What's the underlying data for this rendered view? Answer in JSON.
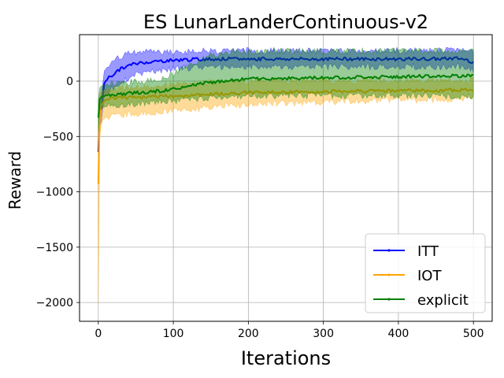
{
  "chart_data": {
    "type": "line",
    "title": "ES LunarLanderContinuous-v2",
    "xlabel": "Iterations",
    "ylabel": "Reward",
    "xlim": [
      -25,
      525
    ],
    "ylim": [
      -2170,
      420
    ],
    "xticks": [
      0,
      100,
      200,
      300,
      400,
      500
    ],
    "xtick_labels": [
      "0",
      "100",
      "200",
      "300",
      "400",
      "500"
    ],
    "yticks": [
      -2000,
      -1500,
      -1000,
      -500,
      0
    ],
    "ytick_labels": [
      "−2000",
      "−1500",
      "−1000",
      "−500",
      "0"
    ],
    "grid": true,
    "legend_position": "lower-right",
    "band_note": "shaded bands show spread across runs",
    "series": [
      {
        "name": "ITT",
        "color": "#0000ff",
        "x": [
          0,
          1,
          2,
          3,
          5,
          8,
          10,
          15,
          20,
          25,
          30,
          40,
          50,
          60,
          70,
          80,
          100,
          120,
          150,
          200,
          250,
          300,
          350,
          400,
          450,
          480,
          490,
          500
        ],
        "y": [
          -640,
          -330,
          -280,
          -300,
          -200,
          -20,
          0,
          40,
          60,
          90,
          110,
          140,
          160,
          170,
          175,
          180,
          190,
          195,
          200,
          200,
          200,
          200,
          200,
          200,
          200,
          205,
          195,
          170
        ],
        "band": [
          [
            -700,
            -560
          ],
          [
            -450,
            -200
          ],
          [
            -400,
            -160
          ],
          [
            -420,
            -180
          ],
          [
            -320,
            -80
          ],
          [
            -140,
            90
          ],
          [
            -120,
            110
          ],
          [
            -80,
            150
          ],
          [
            -60,
            170
          ],
          [
            -30,
            200
          ],
          [
            -10,
            220
          ],
          [
            30,
            250
          ],
          [
            60,
            260
          ],
          [
            80,
            260
          ],
          [
            90,
            260
          ],
          [
            100,
            260
          ],
          [
            110,
            265
          ],
          [
            120,
            270
          ],
          [
            130,
            275
          ],
          [
            130,
            275
          ],
          [
            130,
            275
          ],
          [
            130,
            275
          ],
          [
            130,
            275
          ],
          [
            130,
            275
          ],
          [
            130,
            275
          ],
          [
            135,
            280
          ],
          [
            125,
            270
          ],
          [
            100,
            250
          ]
        ]
      },
      {
        "name": "IOT",
        "color": "#ffa500",
        "x": [
          0,
          1,
          2,
          3,
          5,
          8,
          10,
          15,
          20,
          30,
          40,
          60,
          80,
          100,
          130,
          160,
          200,
          250,
          300,
          350,
          400,
          450,
          500
        ],
        "y": [
          -930,
          -600,
          -300,
          -240,
          -200,
          -180,
          -170,
          -160,
          -155,
          -150,
          -150,
          -145,
          -140,
          -135,
          -125,
          -115,
          -105,
          -100,
          -95,
          -90,
          -85,
          -85,
          -80
        ],
        "band": [
          [
            -2010,
            -300
          ],
          [
            -1200,
            -150
          ],
          [
            -500,
            -120
          ],
          [
            -420,
            -100
          ],
          [
            -360,
            -90
          ],
          [
            -340,
            -80
          ],
          [
            -330,
            -80
          ],
          [
            -320,
            -70
          ],
          [
            -310,
            -70
          ],
          [
            -300,
            -60
          ],
          [
            -300,
            -60
          ],
          [
            -290,
            -50
          ],
          [
            -280,
            -40
          ],
          [
            -270,
            -30
          ],
          [
            -250,
            -20
          ],
          [
            -230,
            -10
          ],
          [
            -210,
            0
          ],
          [
            -200,
            0
          ],
          [
            -190,
            0
          ],
          [
            -180,
            0
          ],
          [
            -175,
            5
          ],
          [
            -170,
            5
          ],
          [
            -165,
            10
          ]
        ]
      },
      {
        "name": "explicit",
        "color": "#008000",
        "x": [
          0,
          1,
          2,
          3,
          5,
          10,
          20,
          40,
          60,
          80,
          100,
          120,
          150,
          180,
          200,
          250,
          300,
          350,
          400,
          450,
          500
        ],
        "y": [
          -330,
          -200,
          -160,
          -150,
          -140,
          -130,
          -120,
          -110,
          -100,
          -90,
          -70,
          -40,
          -10,
          10,
          20,
          25,
          30,
          35,
          40,
          45,
          50
        ],
        "band": [
          [
            -460,
            -180
          ],
          [
            -300,
            -90
          ],
          [
            -260,
            -60
          ],
          [
            -250,
            -50
          ],
          [
            -240,
            -40
          ],
          [
            -230,
            -30
          ],
          [
            -220,
            -20
          ],
          [
            -210,
            -10
          ],
          [
            -200,
            0
          ],
          [
            -190,
            20
          ],
          [
            -180,
            60
          ],
          [
            -170,
            140
          ],
          [
            -150,
            230
          ],
          [
            -140,
            260
          ],
          [
            -130,
            270
          ],
          [
            -130,
            270
          ],
          [
            -130,
            270
          ],
          [
            -130,
            270
          ],
          [
            -130,
            270
          ],
          [
            -130,
            270
          ],
          [
            -140,
            270
          ]
        ]
      }
    ]
  }
}
